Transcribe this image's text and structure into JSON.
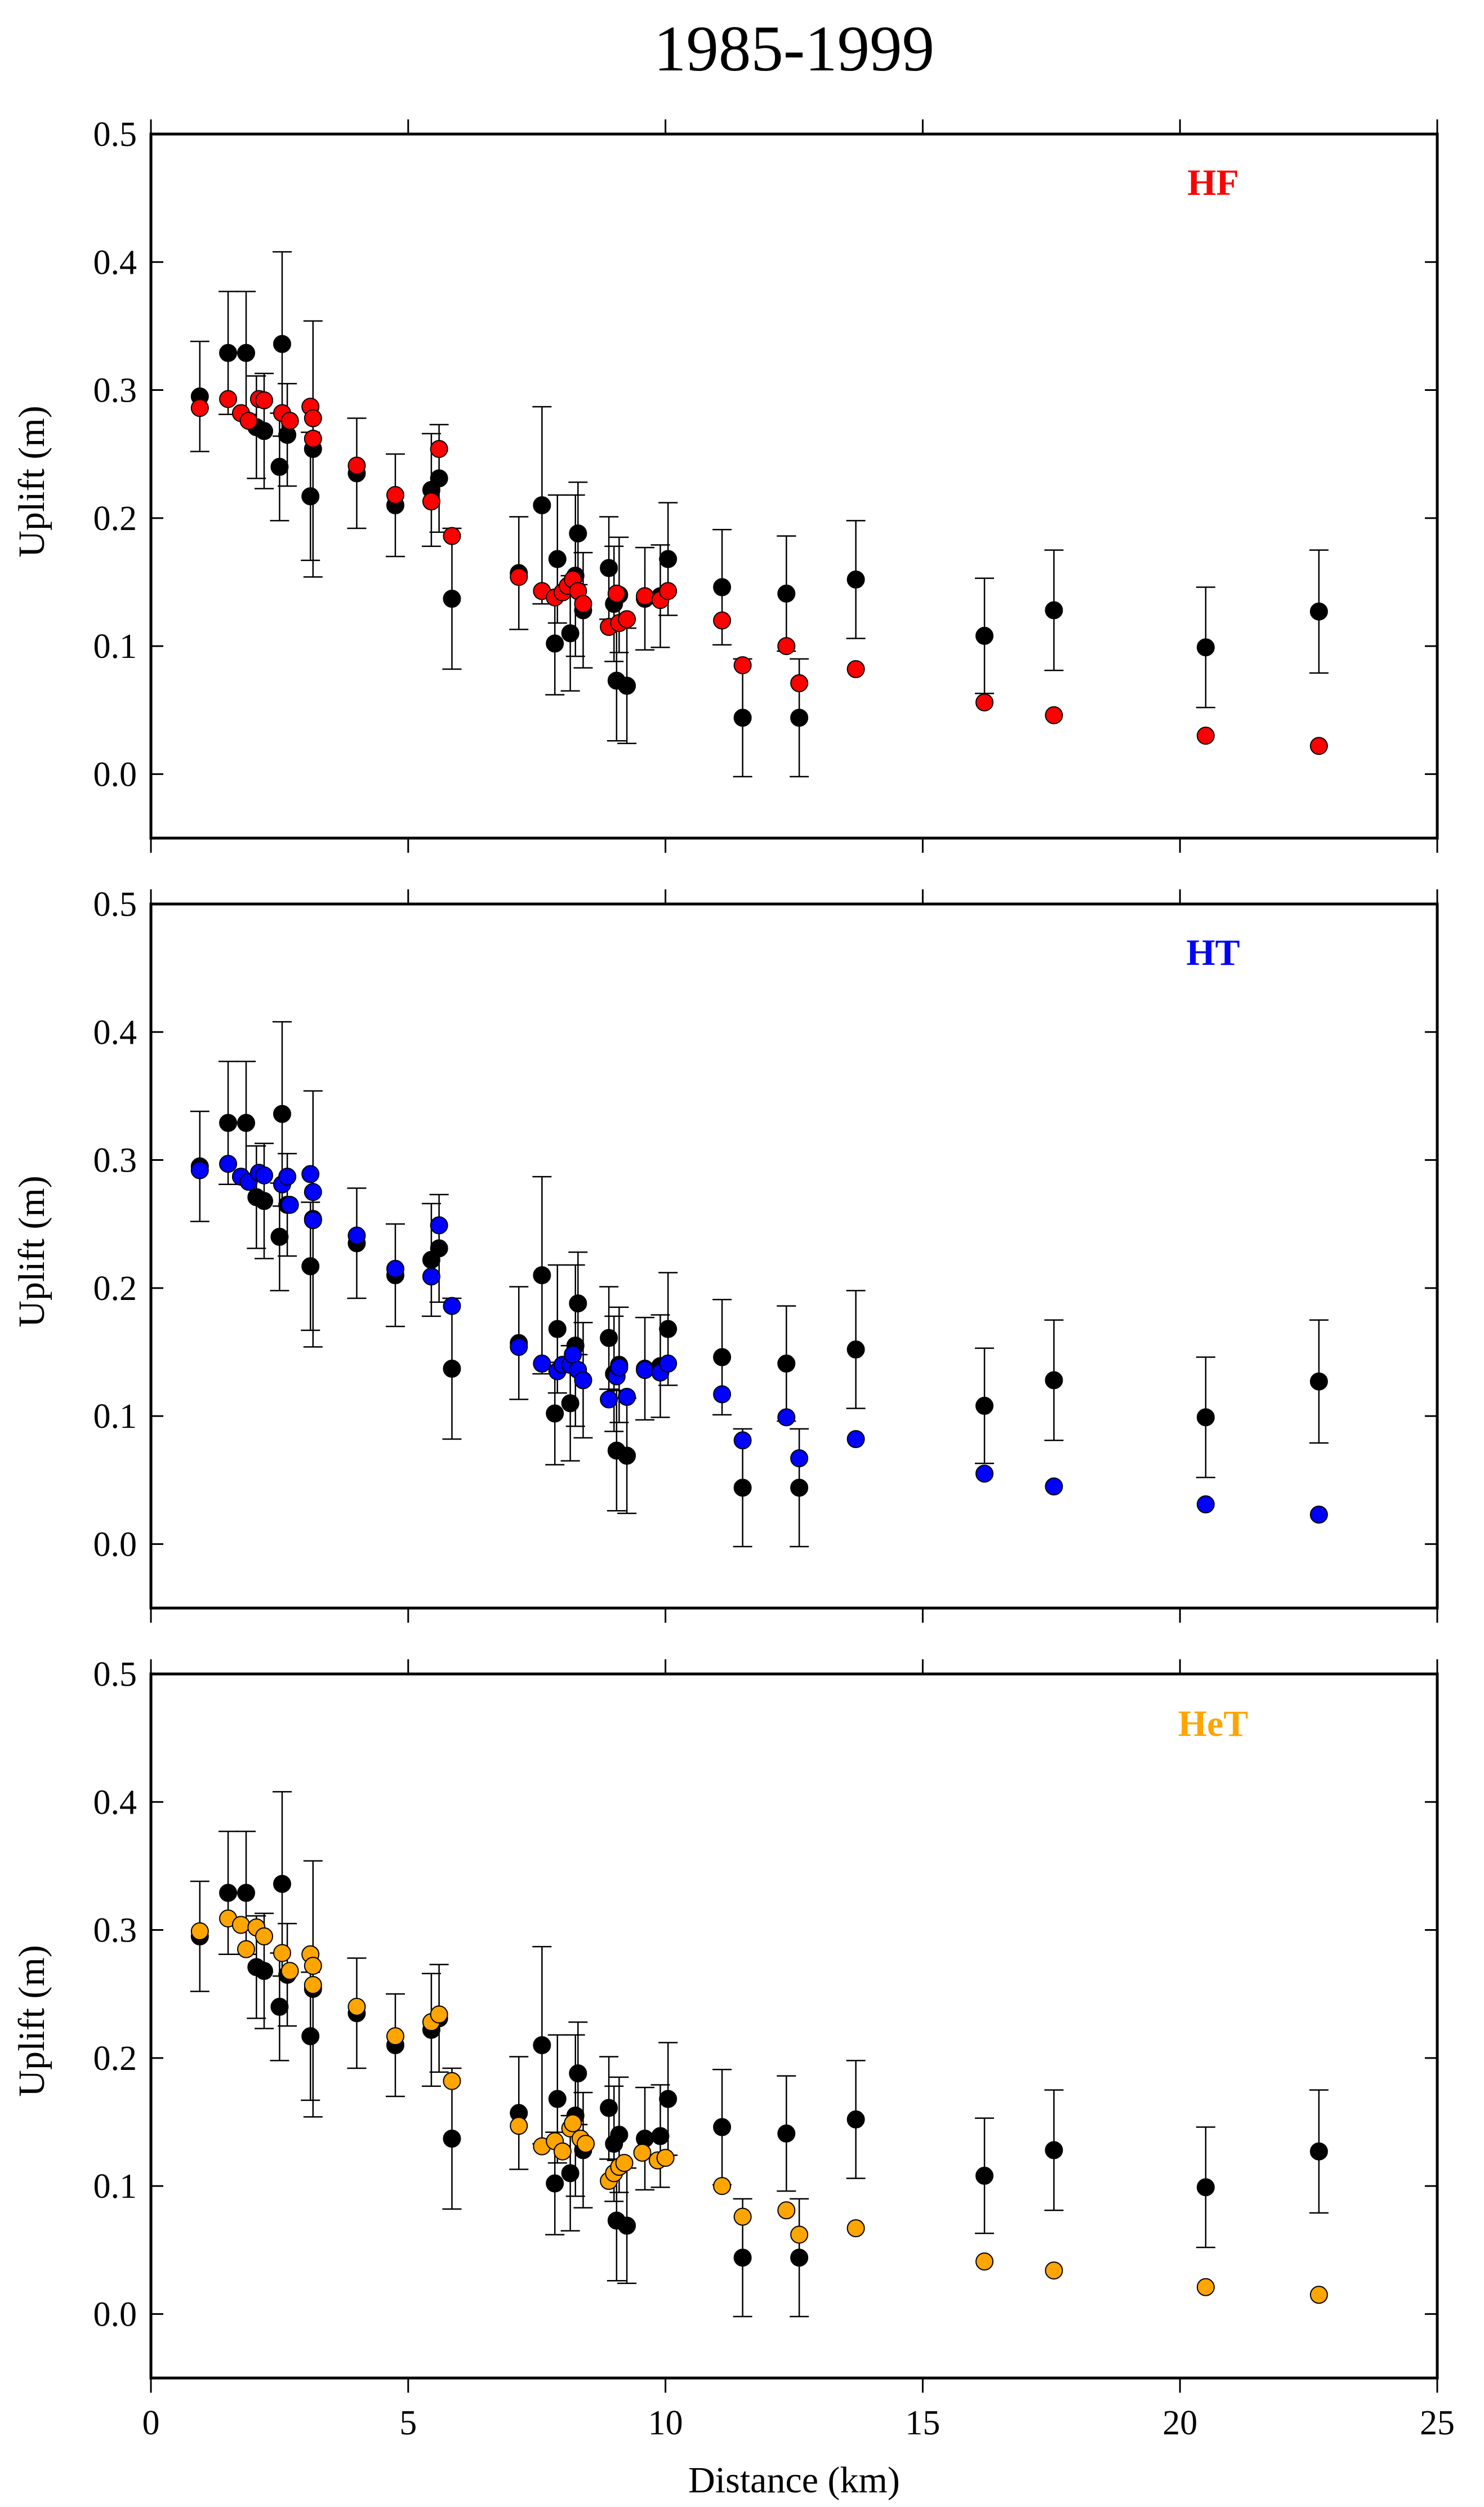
{
  "chart_data": {
    "type": "scatter",
    "title": "1985-1999",
    "xlabel": "Distance (km)",
    "ylabel": "Uplift (m)",
    "xlim": [
      0,
      25
    ],
    "ylim": [
      -0.05,
      0.5
    ],
    "xticks": [
      0,
      5,
      10,
      15,
      20,
      25
    ],
    "yticks": [
      0.0,
      0.1,
      0.2,
      0.3,
      0.4,
      0.5
    ],
    "xtick_labels": [
      "0",
      "5",
      "10",
      "15",
      "20",
      "25"
    ],
    "ytick_labels": [
      "0.0",
      "0.1",
      "0.2",
      "0.3",
      "0.4",
      "0.5"
    ],
    "grid": false,
    "observed": {
      "name": "Observed",
      "color": "#000000",
      "x": [
        0.95,
        1.5,
        1.85,
        2.05,
        2.2,
        2.5,
        2.55,
        2.65,
        3.1,
        3.15,
        4.0,
        4.75,
        5.45,
        5.6,
        5.85,
        7.15,
        7.6,
        7.85,
        7.9,
        8.15,
        8.25,
        8.3,
        8.4,
        8.9,
        9.0,
        9.05,
        9.1,
        9.25,
        9.6,
        9.9,
        10.05,
        11.1,
        11.5,
        12.35,
        12.6,
        13.7,
        16.2,
        17.55,
        20.5,
        22.7
      ],
      "y": [
        0.295,
        0.329,
        0.329,
        0.271,
        0.268,
        0.24,
        0.336,
        0.265,
        0.217,
        0.254,
        0.235,
        0.21,
        0.222,
        0.231,
        0.137,
        0.157,
        0.21,
        0.102,
        0.168,
        0.11,
        0.155,
        0.188,
        0.128,
        0.161,
        0.133,
        0.073,
        0.14,
        0.069,
        0.137,
        0.139,
        0.168,
        0.146,
        0.044,
        0.141,
        0.044,
        0.152,
        0.108,
        0.128,
        0.099,
        0.127
      ],
      "err": [
        0.043,
        0.048,
        0.048,
        0.04,
        0.045,
        0.042,
        0.072,
        0.04,
        0.05,
        0.1,
        0.043,
        0.04,
        0.044,
        0.042,
        0.055,
        0.044,
        0.077,
        0.04,
        0.05,
        0.045,
        0.063,
        0.04,
        0.045,
        0.04,
        0.045,
        0.047,
        0.045,
        0.045,
        0.04,
        0.04,
        0.044,
        0.045,
        0.046,
        0.045,
        0.046,
        0.046,
        0.045,
        0.047,
        0.047,
        0.048
      ]
    },
    "panels": [
      {
        "label": "HF",
        "model": {
          "name": "HF",
          "color": "#ff0000",
          "x": [
            0.95,
            1.5,
            1.75,
            1.9,
            2.1,
            2.2,
            2.55,
            2.7,
            3.1,
            3.15,
            3.15,
            4.0,
            4.75,
            5.45,
            5.6,
            5.85,
            7.15,
            7.6,
            7.85,
            8.0,
            8.1,
            8.2,
            8.3,
            8.4,
            8.9,
            9.05,
            9.1,
            9.25,
            9.6,
            9.9,
            10.05,
            11.1,
            11.5,
            12.35,
            12.6,
            13.7,
            16.2,
            17.55,
            20.5,
            22.7
          ],
          "y": [
            0.286,
            0.293,
            0.282,
            0.276,
            0.293,
            0.292,
            0.282,
            0.276,
            0.287,
            0.278,
            0.262,
            0.241,
            0.218,
            0.213,
            0.254,
            0.186,
            0.154,
            0.143,
            0.138,
            0.142,
            0.147,
            0.152,
            0.143,
            0.133,
            0.115,
            0.141,
            0.118,
            0.121,
            0.139,
            0.136,
            0.143,
            0.12,
            0.085,
            0.1,
            0.071,
            0.082,
            0.056,
            0.046,
            0.03,
            0.022
          ]
        }
      },
      {
        "label": "HT",
        "model": {
          "name": "HT",
          "color": "#0000ff",
          "x": [
            0.95,
            1.5,
            1.75,
            1.9,
            2.1,
            2.2,
            2.55,
            2.65,
            2.7,
            3.1,
            3.15,
            3.15,
            4.0,
            4.75,
            5.45,
            5.6,
            5.85,
            7.15,
            7.6,
            7.9,
            8.0,
            8.15,
            8.2,
            8.3,
            8.4,
            8.9,
            9.05,
            9.1,
            9.25,
            9.6,
            9.9,
            10.05,
            11.1,
            11.5,
            12.35,
            12.6,
            13.7,
            16.2,
            17.55,
            20.5,
            22.7
          ],
          "y": [
            0.292,
            0.297,
            0.287,
            0.283,
            0.29,
            0.288,
            0.281,
            0.287,
            0.265,
            0.289,
            0.275,
            0.253,
            0.241,
            0.215,
            0.209,
            0.249,
            0.186,
            0.154,
            0.141,
            0.135,
            0.14,
            0.14,
            0.148,
            0.136,
            0.128,
            0.113,
            0.131,
            0.138,
            0.115,
            0.136,
            0.134,
            0.141,
            0.117,
            0.081,
            0.099,
            0.067,
            0.082,
            0.055,
            0.045,
            0.031,
            0.023
          ]
        }
      },
      {
        "label": "HeT",
        "model": {
          "name": "HeT",
          "color": "#ffa500",
          "x": [
            0.95,
            1.5,
            1.75,
            1.85,
            2.05,
            2.2,
            2.55,
            2.7,
            3.1,
            3.15,
            3.15,
            4.0,
            4.75,
            5.45,
            5.6,
            5.85,
            7.15,
            7.6,
            7.85,
            8.0,
            8.15,
            8.2,
            8.35,
            8.45,
            8.9,
            9.0,
            9.1,
            9.2,
            9.55,
            9.85,
            10.0,
            11.1,
            11.5,
            12.35,
            12.6,
            13.7,
            16.2,
            17.55,
            20.5,
            22.7
          ],
          "y": [
            0.299,
            0.309,
            0.304,
            0.285,
            0.302,
            0.295,
            0.282,
            0.268,
            0.281,
            0.272,
            0.257,
            0.24,
            0.217,
            0.228,
            0.234,
            0.182,
            0.147,
            0.131,
            0.135,
            0.127,
            0.145,
            0.149,
            0.137,
            0.133,
            0.104,
            0.11,
            0.115,
            0.118,
            0.126,
            0.12,
            0.122,
            0.1,
            0.076,
            0.081,
            0.062,
            0.067,
            0.041,
            0.034,
            0.021,
            0.015
          ]
        }
      }
    ]
  }
}
